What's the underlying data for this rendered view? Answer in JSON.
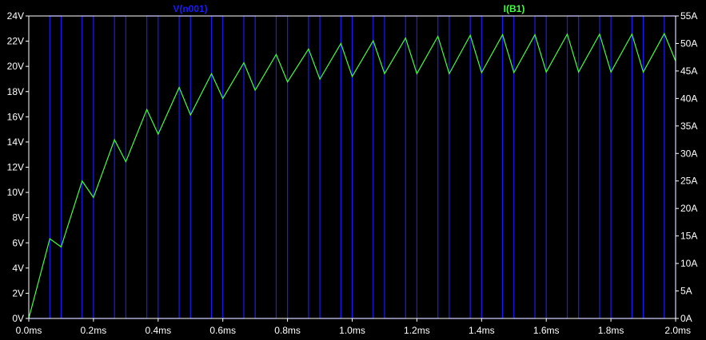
{
  "chart_data": {
    "type": "line",
    "background": "#000000",
    "plot_border_color": "#ffffff",
    "x_axis": {
      "unit": "ms",
      "range": [
        0,
        2.0
      ],
      "ticks": [
        0.0,
        0.2,
        0.4,
        0.6,
        0.8,
        1.0,
        1.2,
        1.4,
        1.6,
        1.8,
        2.0
      ],
      "tick_labels": [
        "0.0ms",
        "0.2ms",
        "0.4ms",
        "0.6ms",
        "0.8ms",
        "1.0ms",
        "1.2ms",
        "1.4ms",
        "1.6ms",
        "1.8ms",
        "2.0ms"
      ]
    },
    "y_left": {
      "unit": "V",
      "range": [
        0,
        24
      ],
      "ticks": [
        0,
        2,
        4,
        6,
        8,
        10,
        12,
        14,
        16,
        18,
        20,
        22,
        24
      ],
      "tick_labels": [
        "0V",
        "2V",
        "4V",
        "6V",
        "8V",
        "10V",
        "12V",
        "14V",
        "16V",
        "18V",
        "20V",
        "22V",
        "24V"
      ]
    },
    "y_right": {
      "unit": "A",
      "range": [
        0,
        55
      ],
      "ticks": [
        0,
        5,
        10,
        15,
        20,
        25,
        30,
        35,
        40,
        45,
        50,
        55
      ],
      "tick_labels": [
        "0A",
        "5A",
        "10A",
        "15A",
        "20A",
        "25A",
        "30A",
        "35A",
        "40A",
        "45A",
        "50A",
        "55A"
      ]
    },
    "series": [
      {
        "name": "V(n001)",
        "color": "#1a1aff",
        "axis": "left",
        "waveform": "pwm_square",
        "low_value": 0,
        "high_value": 24,
        "period_ms": 0.1,
        "high_intervals_ms": [
          [
            0.065,
            0.1
          ],
          [
            0.165,
            0.2
          ],
          [
            0.265,
            0.3
          ],
          [
            0.365,
            0.4
          ],
          [
            0.465,
            0.5
          ],
          [
            0.565,
            0.6
          ],
          [
            0.665,
            0.7
          ],
          [
            0.765,
            0.8
          ],
          [
            0.865,
            0.9
          ],
          [
            0.965,
            1.0
          ],
          [
            1.065,
            1.1
          ],
          [
            1.165,
            1.2
          ],
          [
            1.265,
            1.3
          ],
          [
            1.365,
            1.4
          ],
          [
            1.465,
            1.5
          ],
          [
            1.565,
            1.6
          ],
          [
            1.665,
            1.7
          ],
          [
            1.765,
            1.8
          ],
          [
            1.865,
            1.9
          ],
          [
            1.965,
            2.0
          ]
        ]
      },
      {
        "name": "I(B1)",
        "color": "#40ff40",
        "axis": "right",
        "points_ms_A": [
          [
            0.0,
            0.0
          ],
          [
            0.065,
            14.5
          ],
          [
            0.1,
            13.0
          ],
          [
            0.165,
            25.0
          ],
          [
            0.2,
            22.0
          ],
          [
            0.265,
            32.5
          ],
          [
            0.3,
            28.5
          ],
          [
            0.365,
            38.0
          ],
          [
            0.4,
            33.5
          ],
          [
            0.465,
            42.0
          ],
          [
            0.5,
            37.0
          ],
          [
            0.565,
            44.5
          ],
          [
            0.6,
            40.0
          ],
          [
            0.665,
            46.5
          ],
          [
            0.7,
            41.5
          ],
          [
            0.765,
            48.0
          ],
          [
            0.8,
            43.0
          ],
          [
            0.865,
            49.0
          ],
          [
            0.9,
            43.5
          ],
          [
            0.965,
            50.0
          ],
          [
            1.0,
            44.0
          ],
          [
            1.065,
            50.5
          ],
          [
            1.1,
            44.5
          ],
          [
            1.165,
            51.0
          ],
          [
            1.2,
            44.5
          ],
          [
            1.265,
            51.3
          ],
          [
            1.3,
            44.5
          ],
          [
            1.365,
            51.5
          ],
          [
            1.4,
            44.7
          ],
          [
            1.465,
            51.6
          ],
          [
            1.5,
            44.7
          ],
          [
            1.565,
            51.6
          ],
          [
            1.6,
            44.8
          ],
          [
            1.665,
            51.7
          ],
          [
            1.7,
            44.8
          ],
          [
            1.765,
            51.7
          ],
          [
            1.8,
            44.8
          ],
          [
            1.865,
            51.7
          ],
          [
            1.9,
            44.8
          ],
          [
            1.965,
            51.8
          ],
          [
            2.0,
            46.8
          ]
        ]
      }
    ]
  }
}
